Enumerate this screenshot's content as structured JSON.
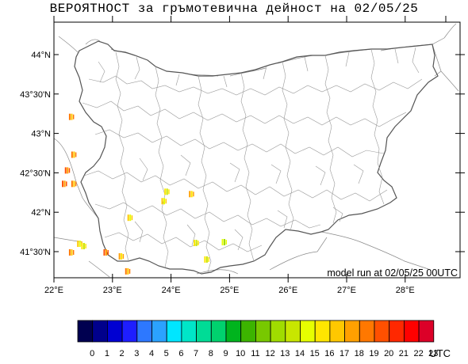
{
  "title": "ВЕРОЯТНОСТ за гръмотевична дейност на 02/05/25",
  "model_run": "model run at 02/05/25 00UTC",
  "axes": {
    "lat_labels": [
      "44°N",
      "43°30'N",
      "43°N",
      "42°30'N",
      "42°N",
      "41°30'N"
    ],
    "lon_labels": [
      "22°E",
      "23°E",
      "24°E",
      "25°E",
      "26°E",
      "27°E",
      "28°E"
    ]
  },
  "colorbar": {
    "labels": [
      "0",
      "1",
      "2",
      "3",
      "4",
      "5",
      "6",
      "7",
      "8",
      "9",
      "10",
      "11",
      "12",
      "13",
      "14",
      "15",
      "16",
      "17",
      "18",
      "19",
      "20",
      "21",
      "22",
      "23"
    ],
    "unit": "UTC",
    "colors": [
      "#000050",
      "#00008c",
      "#0000d2",
      "#1e1eff",
      "#2d78ff",
      "#2ba2ff",
      "#00e6ff",
      "#00e6c8",
      "#00dc96",
      "#00d26e",
      "#00b41e",
      "#3cb400",
      "#78c800",
      "#a0dc00",
      "#c8e600",
      "#e6ff00",
      "#ffe600",
      "#ffc800",
      "#ffa000",
      "#ff7800",
      "#ff5000",
      "#ff2800",
      "#ff0000",
      "#dc0028"
    ]
  },
  "thunder_patches": [
    {
      "lon": 22.29,
      "lat": 43.21,
      "hour": 19
    },
    {
      "lon": 22.33,
      "lat": 42.73,
      "hour": 19
    },
    {
      "lon": 22.22,
      "lat": 42.53,
      "hour": 20
    },
    {
      "lon": 22.17,
      "lat": 42.36,
      "hour": 20
    },
    {
      "lon": 22.33,
      "lat": 42.36,
      "hour": 19
    },
    {
      "lon": 22.43,
      "lat": 41.6,
      "hour": 17
    },
    {
      "lon": 22.5,
      "lat": 41.57,
      "hour": 16
    },
    {
      "lon": 22.29,
      "lat": 41.49,
      "hour": 19
    },
    {
      "lon": 22.88,
      "lat": 41.49,
      "hour": 20
    },
    {
      "lon": 23.29,
      "lat": 41.93,
      "hour": 17
    },
    {
      "lon": 23.14,
      "lat": 41.44,
      "hour": 18
    },
    {
      "lon": 23.87,
      "lat": 42.14,
      "hour": 17
    },
    {
      "lon": 23.92,
      "lat": 42.26,
      "hour": 16
    },
    {
      "lon": 24.34,
      "lat": 42.23,
      "hour": 18
    },
    {
      "lon": 24.42,
      "lat": 41.61,
      "hour": 16
    },
    {
      "lon": 24.9,
      "lat": 41.62,
      "hour": 15
    },
    {
      "lon": 24.6,
      "lat": 41.4,
      "hour": 16
    },
    {
      "lon": 23.25,
      "lat": 41.25,
      "hour": 19
    }
  ]
}
